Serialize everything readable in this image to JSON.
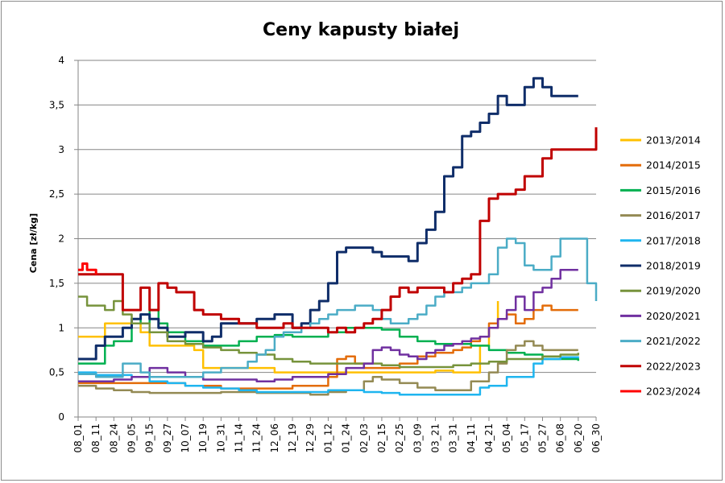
{
  "chart_data": {
    "type": "line",
    "title": "Ceny kapusty białej",
    "xlabel": "",
    "ylabel": "Cena [zł/kg]",
    "ylim": [
      0,
      4
    ],
    "yticks": [
      0,
      0.5,
      1,
      1.5,
      2,
      2.5,
      3,
      3.5,
      4
    ],
    "ytick_labels": [
      "0",
      "0,5",
      "1",
      "1,5",
      "2",
      "2,5",
      "3",
      "3,5",
      "4"
    ],
    "xticks": [
      "08_01",
      "08_11",
      "08_24",
      "09_05",
      "09_15",
      "09_27",
      "10_07",
      "10_19",
      "10_31",
      "11_14",
      "11_24",
      "12_06",
      "12_19",
      "12_29",
      "01_12",
      "01_24",
      "02_03",
      "02_15",
      "02_25",
      "03_09",
      "03_21",
      "03_31",
      "04_11",
      "04_21",
      "05_04",
      "05_17",
      "05_27",
      "06_08",
      "06_20",
      "06_30"
    ],
    "x_index_range": [
      0,
      29
    ],
    "grid": true,
    "legend_position": "right",
    "series": [
      {
        "name": "2013/2014",
        "color": "#FFC000",
        "x": [
          0,
          1,
          1.5,
          2,
          2.5,
          3,
          3.5,
          4,
          4.5,
          5,
          5.5,
          6,
          6.5,
          7,
          8,
          9,
          10,
          11,
          12,
          13,
          14,
          15,
          16,
          17,
          18,
          19,
          20,
          21,
          22,
          22.5,
          23,
          23.5
        ],
        "y": [
          0.9,
          0.9,
          1.05,
          1.05,
          1.05,
          1.05,
          0.95,
          0.8,
          0.8,
          0.8,
          0.8,
          0.8,
          0.75,
          0.55,
          0.55,
          0.55,
          0.55,
          0.5,
          0.5,
          0.5,
          0.5,
          0.5,
          0.5,
          0.5,
          0.5,
          0.5,
          0.52,
          0.5,
          0.5,
          0.8,
          1.0,
          1.3
        ]
      },
      {
        "name": "2014/2015",
        "color": "#E36C09",
        "x": [
          0,
          2,
          4,
          6,
          8,
          10,
          12,
          14,
          14.5,
          15,
          15.5,
          16,
          17,
          18,
          19,
          20,
          21,
          21.5,
          22,
          22.5,
          23,
          23.5,
          24,
          24.5,
          25,
          25.5,
          26,
          26.5,
          27,
          27.5,
          28
        ],
        "y": [
          0.38,
          0.38,
          0.38,
          0.35,
          0.32,
          0.32,
          0.35,
          0.45,
          0.65,
          0.68,
          0.6,
          0.55,
          0.55,
          0.6,
          0.68,
          0.72,
          0.75,
          0.78,
          0.85,
          0.9,
          1.05,
          1.1,
          1.15,
          1.05,
          1.1,
          1.2,
          1.25,
          1.2,
          1.2,
          1.2,
          1.2
        ]
      },
      {
        "name": "2015/2016",
        "color": "#00B050",
        "x": [
          0,
          1,
          1.5,
          2,
          3,
          3.5,
          4,
          4.5,
          5,
          6,
          7,
          8,
          9,
          10,
          11,
          12,
          13,
          14,
          15,
          16,
          17,
          18,
          19,
          20,
          21,
          22,
          23,
          24,
          25,
          26,
          27,
          28
        ],
        "y": [
          0.6,
          0.6,
          0.8,
          0.85,
          1.1,
          1.05,
          1.2,
          1.05,
          0.95,
          0.85,
          0.8,
          0.8,
          0.85,
          0.9,
          0.92,
          0.9,
          0.9,
          0.95,
          1.0,
          1.0,
          0.98,
          0.9,
          0.85,
          0.82,
          0.82,
          0.8,
          0.75,
          0.72,
          0.7,
          0.65,
          0.65,
          0.63
        ]
      },
      {
        "name": "2016/2017",
        "color": "#948A54",
        "x": [
          0,
          1,
          2,
          3,
          4,
          5,
          6,
          7,
          8,
          9,
          10,
          11,
          12,
          13,
          14,
          15,
          16,
          16.5,
          17,
          18,
          19,
          20,
          21,
          22,
          23,
          23.5,
          24,
          24.5,
          25,
          25.5,
          26,
          27,
          28
        ],
        "y": [
          0.35,
          0.32,
          0.3,
          0.28,
          0.27,
          0.27,
          0.27,
          0.27,
          0.28,
          0.28,
          0.27,
          0.27,
          0.27,
          0.25,
          0.28,
          0.3,
          0.4,
          0.45,
          0.42,
          0.38,
          0.33,
          0.3,
          0.3,
          0.4,
          0.5,
          0.6,
          0.75,
          0.8,
          0.85,
          0.8,
          0.75,
          0.75,
          0.75
        ]
      },
      {
        "name": "2017/2018",
        "color": "#1FB5EF",
        "x": [
          0,
          1,
          2,
          3,
          4,
          5,
          6,
          7,
          8,
          9,
          10,
          11,
          12,
          13,
          14,
          15,
          16,
          17,
          18,
          19,
          20,
          21,
          22,
          22.5,
          23,
          24,
          25,
          25.5,
          26,
          27,
          28
        ],
        "y": [
          0.5,
          0.47,
          0.47,
          0.45,
          0.4,
          0.38,
          0.35,
          0.33,
          0.32,
          0.3,
          0.28,
          0.28,
          0.28,
          0.28,
          0.3,
          0.3,
          0.28,
          0.27,
          0.25,
          0.25,
          0.25,
          0.25,
          0.25,
          0.33,
          0.35,
          0.45,
          0.45,
          0.6,
          0.65,
          0.67,
          0.68
        ]
      },
      {
        "name": "2018/2019",
        "color": "#0F2D69",
        "x": [
          0,
          0.5,
          1,
          1.5,
          2,
          2.5,
          3,
          3.5,
          4,
          4.5,
          5,
          6,
          7,
          7.5,
          8,
          9,
          10,
          10.5,
          11,
          12,
          12.5,
          13,
          13.5,
          14,
          14.5,
          15,
          15.5,
          16,
          16.5,
          17,
          18,
          18.5,
          19,
          19.5,
          20,
          20.5,
          21,
          21.5,
          22,
          22.5,
          23,
          23.5,
          24,
          24.5,
          25,
          25.5,
          26,
          26.5,
          27,
          27.5,
          28
        ],
        "y": [
          0.65,
          0.65,
          0.8,
          0.9,
          0.9,
          1.0,
          1.1,
          1.15,
          1.1,
          1.0,
          0.9,
          0.95,
          0.85,
          0.9,
          1.05,
          1.05,
          1.1,
          1.1,
          1.15,
          1.0,
          1.05,
          1.2,
          1.3,
          1.5,
          1.85,
          1.9,
          1.9,
          1.9,
          1.85,
          1.8,
          1.8,
          1.75,
          1.95,
          2.1,
          2.3,
          2.7,
          2.8,
          3.15,
          3.2,
          3.3,
          3.4,
          3.6,
          3.5,
          3.5,
          3.7,
          3.8,
          3.7,
          3.6,
          3.6,
          3.6,
          3.6
        ]
      },
      {
        "name": "2019/2020",
        "color": "#77933C",
        "x": [
          0,
          0.5,
          1,
          1.5,
          2,
          2.5,
          3,
          4,
          5,
          6,
          7,
          8,
          9,
          10,
          11,
          12,
          13,
          14,
          15,
          16,
          17,
          18,
          19,
          20,
          21,
          22,
          23,
          24,
          25,
          26,
          27,
          28
        ],
        "y": [
          1.35,
          1.25,
          1.25,
          1.2,
          1.3,
          1.15,
          1.05,
          0.95,
          0.85,
          0.82,
          0.78,
          0.75,
          0.72,
          0.7,
          0.65,
          0.62,
          0.6,
          0.6,
          0.6,
          0.6,
          0.58,
          0.56,
          0.56,
          0.56,
          0.58,
          0.6,
          0.62,
          0.65,
          0.65,
          0.68,
          0.7,
          0.72
        ]
      },
      {
        "name": "2020/2021",
        "color": "#7030A0",
        "x": [
          0,
          2,
          3,
          4,
          5,
          6,
          7,
          8,
          9,
          10,
          11,
          12,
          13,
          14,
          15,
          16,
          16.5,
          17,
          17.5,
          18,
          18.5,
          19,
          19.5,
          20,
          20.5,
          21,
          21.5,
          22,
          22.5,
          23,
          23.5,
          24,
          24.5,
          25,
          25.5,
          26,
          26.5,
          27,
          27.5,
          28
        ],
        "y": [
          0.4,
          0.42,
          0.45,
          0.55,
          0.5,
          0.45,
          0.42,
          0.42,
          0.42,
          0.4,
          0.42,
          0.45,
          0.45,
          0.48,
          0.55,
          0.6,
          0.75,
          0.78,
          0.75,
          0.7,
          0.68,
          0.65,
          0.72,
          0.75,
          0.8,
          0.82,
          0.85,
          0.88,
          0.9,
          1.0,
          1.1,
          1.2,
          1.35,
          1.2,
          1.4,
          1.45,
          1.55,
          1.65,
          1.65,
          1.65
        ]
      },
      {
        "name": "2021/2022",
        "color": "#4BACC6",
        "x": [
          0,
          1,
          2,
          2.5,
          3,
          3.5,
          4,
          5,
          6,
          7,
          8,
          9,
          9.5,
          10,
          10.5,
          11,
          11.5,
          12,
          12.5,
          13,
          13.5,
          14,
          14.5,
          15,
          15.5,
          16,
          16.5,
          17,
          17.5,
          18,
          18.5,
          19,
          19.5,
          20,
          20.5,
          21,
          21.5,
          22,
          22.5,
          23,
          23.5,
          24,
          24.5,
          25,
          25.5,
          26,
          26.5,
          27,
          27.5,
          28,
          28.5,
          29
        ],
        "y": [
          0.48,
          0.45,
          0.45,
          0.6,
          0.6,
          0.5,
          0.45,
          0.45,
          0.45,
          0.5,
          0.55,
          0.55,
          0.62,
          0.7,
          0.75,
          0.9,
          0.95,
          0.95,
          1.0,
          1.05,
          1.1,
          1.15,
          1.2,
          1.2,
          1.25,
          1.25,
          1.2,
          1.1,
          1.05,
          1.05,
          1.1,
          1.15,
          1.25,
          1.35,
          1.4,
          1.4,
          1.45,
          1.5,
          1.5,
          1.6,
          1.9,
          2.0,
          1.95,
          1.7,
          1.65,
          1.65,
          1.8,
          2.0,
          2.0,
          2.0,
          1.5,
          1.3
        ]
      },
      {
        "name": "2022/2023",
        "color": "#C00000",
        "x": [
          0,
          1,
          2,
          2.5,
          3,
          3.5,
          4,
          4.5,
          5,
          5.5,
          6,
          6.5,
          7,
          8,
          9,
          10,
          11,
          11.5,
          12,
          12.5,
          13,
          13.5,
          14,
          14.5,
          15,
          15.5,
          16,
          16.5,
          17,
          17.5,
          18,
          18.5,
          19,
          19.5,
          20,
          20.5,
          21,
          21.5,
          22,
          22.5,
          23,
          23.5,
          24,
          24.5,
          25,
          25.5,
          26,
          26.5,
          27,
          27.5,
          28,
          28.5,
          29
        ],
        "y": [
          1.6,
          1.6,
          1.6,
          1.2,
          1.2,
          1.45,
          1.2,
          1.5,
          1.45,
          1.4,
          1.4,
          1.2,
          1.15,
          1.1,
          1.05,
          1.0,
          1.0,
          1.05,
          1.0,
          1.0,
          1.0,
          1.0,
          0.95,
          1.0,
          0.95,
          1.0,
          1.05,
          1.1,
          1.2,
          1.35,
          1.45,
          1.4,
          1.45,
          1.45,
          1.45,
          1.4,
          1.5,
          1.55,
          1.6,
          2.2,
          2.45,
          2.5,
          2.5,
          2.55,
          2.7,
          2.7,
          2.9,
          3.0,
          3.0,
          3.0,
          3.0,
          3.0,
          3.25
        ]
      },
      {
        "name": "2023/2024",
        "color": "#FF0000",
        "x": [
          0,
          0.25,
          0.5,
          1
        ],
        "y": [
          1.65,
          1.72,
          1.65,
          1.6
        ]
      }
    ]
  }
}
